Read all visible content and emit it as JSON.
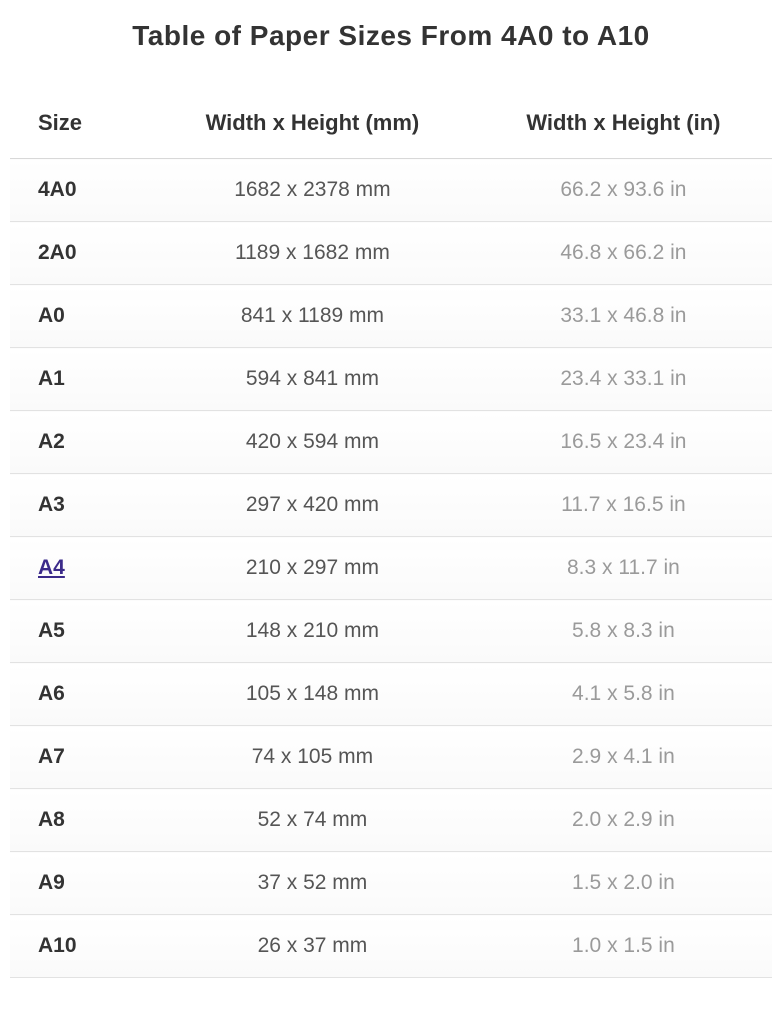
{
  "title": "Table of Paper Sizes From 4A0 to A10",
  "columns": {
    "size": "Size",
    "mm": "Width x Height (mm)",
    "in": "Width x Height (in)"
  },
  "rows": [
    {
      "size": "4A0",
      "mm": "1682 x 2378 mm",
      "in": "66.2 x 93.6 in",
      "link": false
    },
    {
      "size": "2A0",
      "mm": "1189 x 1682 mm",
      "in": "46.8 x 66.2 in",
      "link": false
    },
    {
      "size": "A0",
      "mm": "841 x 1189 mm",
      "in": "33.1 x 46.8 in",
      "link": false
    },
    {
      "size": "A1",
      "mm": "594 x 841 mm",
      "in": "23.4 x 33.1 in",
      "link": false
    },
    {
      "size": "A2",
      "mm": "420 x 594 mm",
      "in": "16.5 x 23.4 in",
      "link": false
    },
    {
      "size": "A3",
      "mm": "297 x 420 mm",
      "in": "11.7 x 16.5 in",
      "link": false
    },
    {
      "size": "A4",
      "mm": "210 x 297 mm",
      "in": "8.3 x 11.7 in",
      "link": true
    },
    {
      "size": "A5",
      "mm": "148 x 210 mm",
      "in": "5.8 x 8.3 in",
      "link": false
    },
    {
      "size": "A6",
      "mm": "105 x 148 mm",
      "in": "4.1 x 5.8 in",
      "link": false
    },
    {
      "size": "A7",
      "mm": "74 x 105 mm",
      "in": "2.9 x 4.1 in",
      "link": false
    },
    {
      "size": "A8",
      "mm": "52 x 74 mm",
      "in": "2.0 x 2.9 in",
      "link": false
    },
    {
      "size": "A9",
      "mm": "37 x 52 mm",
      "in": "1.5 x 2.0 in",
      "link": false
    },
    {
      "size": "A10",
      "mm": "26 x 37 mm",
      "in": "1.0 x 1.5 in",
      "link": false
    }
  ],
  "style": {
    "title_fontsize": 28,
    "header_fontsize": 22,
    "cell_fontsize": 21,
    "title_color": "#333333",
    "size_color": "#333333",
    "mm_color": "#555555",
    "in_color": "#9a9a9a",
    "link_color": "#3b2a8a",
    "row_border_color": "#e2e2e2",
    "header_border_color": "#d8d8d8",
    "row_bg_top": "#ffffff",
    "row_bg_bottom": "#fafafa",
    "font_family": "Verdana"
  }
}
